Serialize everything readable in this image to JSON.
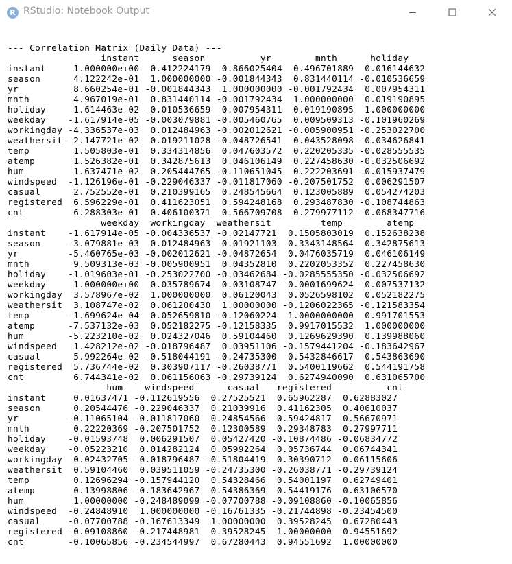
{
  "window": {
    "title": "RStudio: Notebook Output",
    "app_icon_letter": "R",
    "controls": [
      "minimize-icon",
      "maximize-icon",
      "close-icon"
    ]
  },
  "output": {
    "heading": "--- Correlation Matrix (Daily Data) ---",
    "blocks": [
      {
        "header": "                 instant      season          yr        mnth      holiday",
        "rows": [
          "instant     1.000000e+00  0.412224179  0.866025404  0.496701889  0.016144632",
          "season      4.122242e-01  1.000000000 -0.001844343  0.831440114 -0.010536659",
          "yr          8.660254e-01 -0.001844343  1.000000000 -0.001792434  0.007954311",
          "mnth        4.967019e-01  0.831440114 -0.001792434  1.000000000  0.019190895",
          "holiday     1.614463e-02 -0.010536659  0.007954311  0.019190895  1.000000000",
          "weekday    -1.617914e-05 -0.003079881 -0.005460765  0.009509313 -0.101960269",
          "workingday -4.336537e-03  0.012484963 -0.002012621 -0.005900951 -0.253022700",
          "weathersit -2.147721e-02  0.019211028 -0.048726541  0.043528098 -0.034626841",
          "temp        1.505803e-01  0.334314856  0.047603572  0.220205335 -0.028555535",
          "atemp       1.526382e-01  0.342875613  0.046106149  0.227458630 -0.032506692",
          "hum         1.637471e-02  0.205444765 -0.110651045  0.222203691 -0.015937479",
          "windspeed  -1.126196e-01 -0.229046337 -0.011817060 -0.207501752  0.006291507",
          "casual      2.752552e-01  0.210399165  0.248545664  0.123005889  0.054274203",
          "registered  6.596229e-01  0.411623051  0.594248168  0.293487830 -0.108744863",
          "cnt         6.288303e-01  0.406100371  0.566709708  0.279977112 -0.068347716"
        ]
      },
      {
        "header": "                 weekday  workingday  weathersit         temp        atemp",
        "rows": [
          "instant    -1.617914e-05 -0.004336537 -0.02147721  0.1505803019  0.152638238",
          "season     -3.079881e-03  0.012484963  0.01921103  0.3343148564  0.342875613",
          "yr         -5.460765e-03 -0.002012621 -0.04872654  0.0476035719  0.046106149",
          "mnth        9.509313e-03 -0.005900951  0.04352810  0.2202053352  0.227458630",
          "holiday    -1.019603e-01 -0.253022700 -0.03462684 -0.0285555350 -0.032506692",
          "weekday     1.000000e+00  0.035789674  0.03108747 -0.0001699624 -0.007537132",
          "workingday  3.578967e-02  1.000000000  0.06120043  0.0526598102  0.052182275",
          "weathersit  3.108747e-02  0.061200430  1.00000000 -0.1206022365 -0.121583354",
          "temp       -1.699624e-04  0.052659810 -0.12060224  1.0000000000  0.991701553",
          "atemp      -7.537132e-03  0.052182275 -0.12158335  0.9917015532  1.000000000",
          "hum        -5.223210e-02  0.024327046  0.59104460  0.1269629390  0.139988060",
          "windspeed   1.428212e-02 -0.018796487  0.03951106 -0.1579441204 -0.183642967",
          "casual      5.992264e-02 -0.518044191 -0.24735300  0.5432846617  0.543863690",
          "registered  5.736744e-02  0.303907117 -0.26038771  0.5400119662  0.544191758",
          "cnt         6.744341e-02  0.061156063 -0.29739124  0.6274940090  0.631065700"
        ]
      },
      {
        "header": "                  hum    windspeed      casual   registered          cnt",
        "rows": [
          "instant     0.01637471 -0.112619556  0.27525521  0.65962287  0.62883027",
          "season      0.20544476 -0.229046337  0.21039916  0.41162305  0.40610037",
          "yr         -0.11065104 -0.011817060  0.24854566  0.59424817  0.56670971",
          "mnth        0.22220369 -0.207501752  0.12300589  0.29348783  0.27997711",
          "holiday    -0.01593748  0.006291507  0.05427420 -0.10874486 -0.06834772",
          "weekday    -0.05223210  0.014282124  0.05992264  0.05736744  0.06744341",
          "workingday  0.02432705 -0.018796487 -0.51804419  0.30390712  0.06115606",
          "weathersit  0.59104460  0.039511059 -0.24735300 -0.26038771 -0.29739124",
          "temp        0.12696294 -0.157944120  0.54328466  0.54001197  0.62749401",
          "atemp       0.13998806 -0.183642967  0.54386369  0.54419176  0.63106570",
          "hum         1.00000000 -0.248489099 -0.07700788 -0.09108860 -0.10065856",
          "windspeed  -0.24848910  1.000000000 -0.16761335 -0.21744898 -0.23454500",
          "casual     -0.07700788 -0.167613349  1.00000000  0.39528245  0.67280443",
          "registered -0.09108860 -0.217448981  0.39528245  1.00000000  0.94551692",
          "cnt        -0.10065856 -0.234544997  0.67280443  0.94551692  1.00000000"
        ]
      }
    ]
  }
}
